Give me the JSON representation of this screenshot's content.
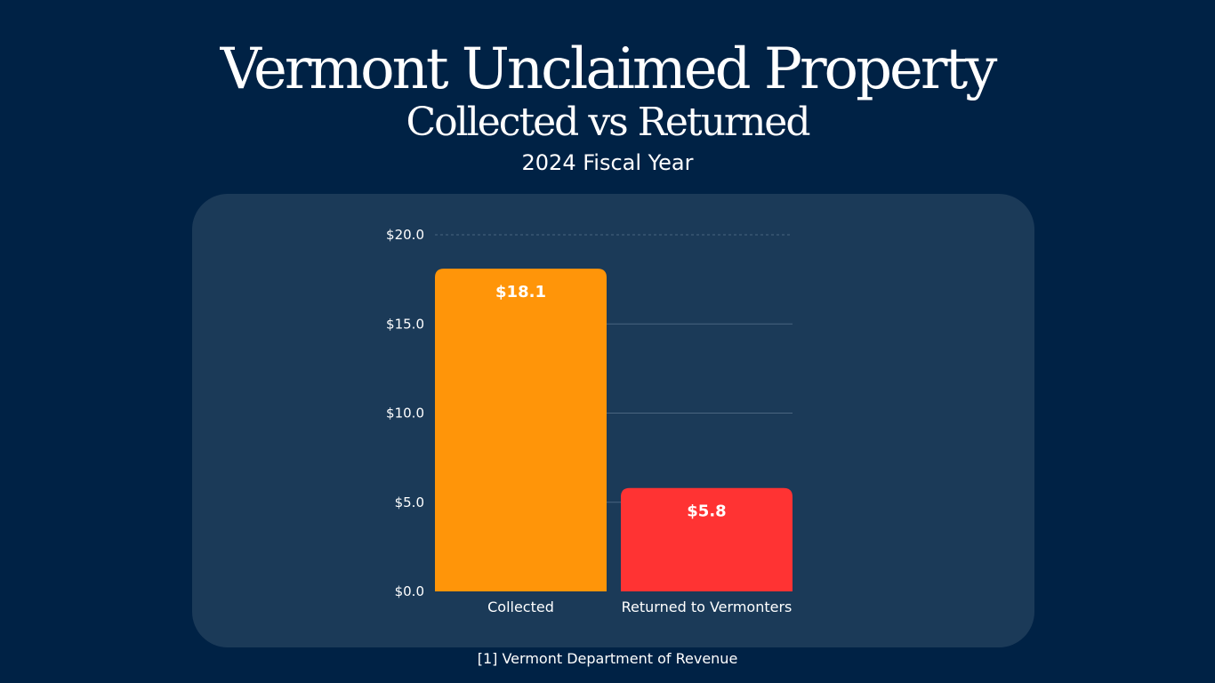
{
  "header": {
    "title": "Vermont Unclaimed Property",
    "subtitle": "Collected vs Returned",
    "period": "2024 Fiscal Year"
  },
  "footer": {
    "source": "[1] Vermont Department of Revenue"
  },
  "colors": {
    "background": "#002245",
    "panel": "#1b3a58",
    "collected": "#ff9509",
    "returned": "#ff3333",
    "text": "#ffffff",
    "grid": "#4a6580"
  },
  "chart_data": {
    "type": "bar",
    "title": "",
    "xlabel": "",
    "ylabel": "",
    "categories": [
      "Collected",
      "Returned to Vermonters"
    ],
    "values": [
      18.1,
      5.8
    ],
    "data_labels": [
      "$18.1",
      "$5.8"
    ],
    "bar_colors": [
      "#ff9509",
      "#ff3333"
    ],
    "ylim": [
      0,
      20
    ],
    "yticks": [
      0,
      5,
      10,
      15,
      20
    ],
    "ytick_labels": [
      "$0.0",
      "$5.0",
      "$10.0",
      "$15.0",
      "$20.0"
    ],
    "grid": true,
    "legend": "none"
  }
}
